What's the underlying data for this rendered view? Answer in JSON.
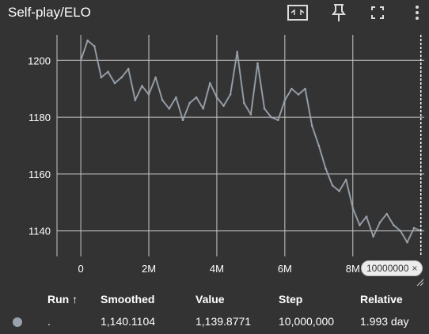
{
  "card": {
    "title": "Self-play/ELO"
  },
  "toolbar": {
    "icons": [
      "fit-to-data-icon",
      "pin-icon",
      "fullscreen-icon",
      "more-vert-icon"
    ]
  },
  "chart_data": {
    "type": "line",
    "title": "Self-play/ELO",
    "xlabel": "",
    "ylabel": "",
    "xlim": [
      -700000,
      10100000
    ],
    "ylim": [
      1131,
      1209
    ],
    "xticks": [
      0,
      2000000,
      4000000,
      6000000,
      8000000
    ],
    "xtick_labels": [
      "0",
      "2M",
      "4M",
      "6M",
      "8M"
    ],
    "yticks": [
      1140,
      1160,
      1180,
      1200
    ],
    "ytick_labels": [
      "1140",
      "1160",
      "1180",
      "1200"
    ],
    "grid": true,
    "series": [
      {
        "color": "#9aa3ad",
        "x": [
          0,
          200000,
          400000,
          600000,
          800000,
          1000000,
          1200000,
          1400000,
          1600000,
          1800000,
          2000000,
          2200000,
          2400000,
          2600000,
          2800000,
          3000000,
          3200000,
          3400000,
          3600000,
          3800000,
          4000000,
          4200000,
          4400000,
          4600000,
          4800000,
          5000000,
          5200000,
          5400000,
          5600000,
          5800000,
          6000000,
          6200000,
          6400000,
          6600000,
          6800000,
          7000000,
          7200000,
          7400000,
          7600000,
          7800000,
          8000000,
          8200000,
          8400000,
          8600000,
          8800000,
          9000000,
          9200000,
          9400000,
          9600000,
          9800000,
          10000000
        ],
        "values": [
          1200,
          1207,
          1205,
          1194,
          1196,
          1192,
          1194,
          1197,
          1186,
          1191,
          1188,
          1194,
          1186,
          1183,
          1187,
          1179,
          1185,
          1187,
          1183,
          1192,
          1187,
          1184,
          1188,
          1203,
          1185,
          1181,
          1199,
          1183,
          1180,
          1179,
          1186,
          1190,
          1188,
          1190,
          1177,
          1170,
          1162,
          1156,
          1154,
          1158,
          1148,
          1142,
          1145,
          1138,
          1143,
          1146,
          1142,
          1140,
          1136,
          1141,
          1140
        ]
      }
    ]
  },
  "cursor": {
    "step_label": "10000000",
    "close_glyph": "×"
  },
  "table": {
    "headers": {
      "run": "Run ↑",
      "smoothed": "Smoothed",
      "value": "Value",
      "step": "Step",
      "relative": "Relative"
    },
    "rows": [
      {
        "run": ".",
        "smoothed": "1,140.1104",
        "value": "1,139.8771",
        "step": "10,000,000",
        "relative": "1.993 day"
      }
    ]
  }
}
